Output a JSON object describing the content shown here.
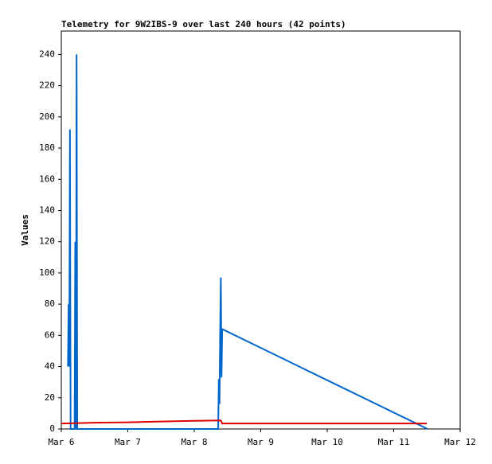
{
  "chart_data": {
    "type": "line",
    "title": "Telemetry for 9W2IBS-9 over last 240 hours (42 points)",
    "y_label": "Values",
    "xlim": [
      6,
      12
    ],
    "xticks": [
      {
        "value": 6,
        "label": "Mar 6"
      },
      {
        "value": 7,
        "label": "Mar 7"
      },
      {
        "value": 8,
        "label": "Mar 8"
      },
      {
        "value": 9,
        "label": "Mar 9"
      },
      {
        "value": 10,
        "label": "Mar 10"
      },
      {
        "value": 11,
        "label": "Mar 11"
      },
      {
        "value": 12,
        "label": "Mar 12"
      }
    ],
    "ylim": [
      0,
      255
    ],
    "yticks": [
      0,
      20,
      40,
      60,
      80,
      100,
      120,
      140,
      160,
      180,
      200,
      220,
      240
    ],
    "series": [
      {
        "color": "#0066cc",
        "x": [
          6.1,
          6.11,
          6.12,
          6.13,
          6.14,
          6.2,
          6.21,
          6.22,
          6.23,
          6.24,
          8.36,
          8.37,
          8.38,
          8.39,
          8.4,
          8.41,
          8.42,
          11.51
        ],
        "values": [
          40,
          80,
          40,
          192,
          0,
          0,
          120,
          0,
          240,
          0,
          0,
          32,
          16,
          64,
          97,
          33,
          64,
          0
        ]
      },
      {
        "color": "#dd0000",
        "x": [
          6.0,
          6.5,
          7.0,
          7.5,
          8.0,
          8.4,
          8.42,
          11.5
        ],
        "values": [
          3.5,
          4,
          4.3,
          4.8,
          5.2,
          5.5,
          3.5,
          3.5
        ]
      }
    ]
  }
}
